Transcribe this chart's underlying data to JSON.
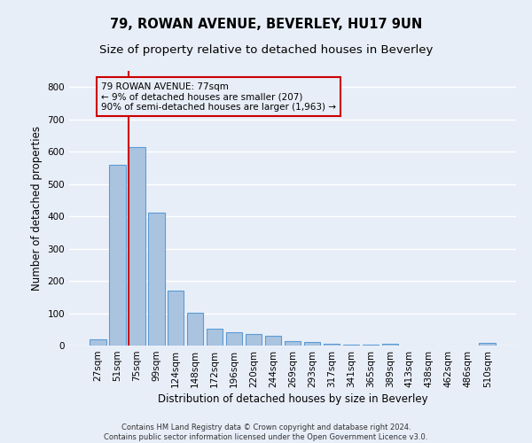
{
  "title": "79, ROWAN AVENUE, BEVERLEY, HU17 9UN",
  "subtitle": "Size of property relative to detached houses in Beverley",
  "xlabel": "Distribution of detached houses by size in Beverley",
  "ylabel": "Number of detached properties",
  "footnote": "Contains HM Land Registry data © Crown copyright and database right 2024.\nContains public sector information licensed under the Open Government Licence v3.0.",
  "categories": [
    "27sqm",
    "51sqm",
    "75sqm",
    "99sqm",
    "124sqm",
    "148sqm",
    "172sqm",
    "196sqm",
    "220sqm",
    "244sqm",
    "269sqm",
    "293sqm",
    "317sqm",
    "341sqm",
    "365sqm",
    "389sqm",
    "413sqm",
    "438sqm",
    "462sqm",
    "486sqm",
    "510sqm"
  ],
  "bar_values": [
    18,
    560,
    615,
    410,
    170,
    102,
    52,
    40,
    35,
    30,
    13,
    10,
    5,
    4,
    2,
    6,
    0,
    0,
    0,
    0,
    7
  ],
  "bar_color": "#aac4e0",
  "bar_edge_color": "#5b9bd5",
  "bar_edge_width": 0.8,
  "ylim": [
    0,
    850
  ],
  "yticks": [
    0,
    100,
    200,
    300,
    400,
    500,
    600,
    700,
    800
  ],
  "red_line_color": "#cc0000",
  "box_edge_color": "#cc0000",
  "background_color": "#e8eef8",
  "grid_color": "#ffffff",
  "title_fontsize": 10.5,
  "subtitle_fontsize": 9.5,
  "axis_label_fontsize": 8.5,
  "tick_fontsize": 7.5,
  "footnote_fontsize": 6.0
}
